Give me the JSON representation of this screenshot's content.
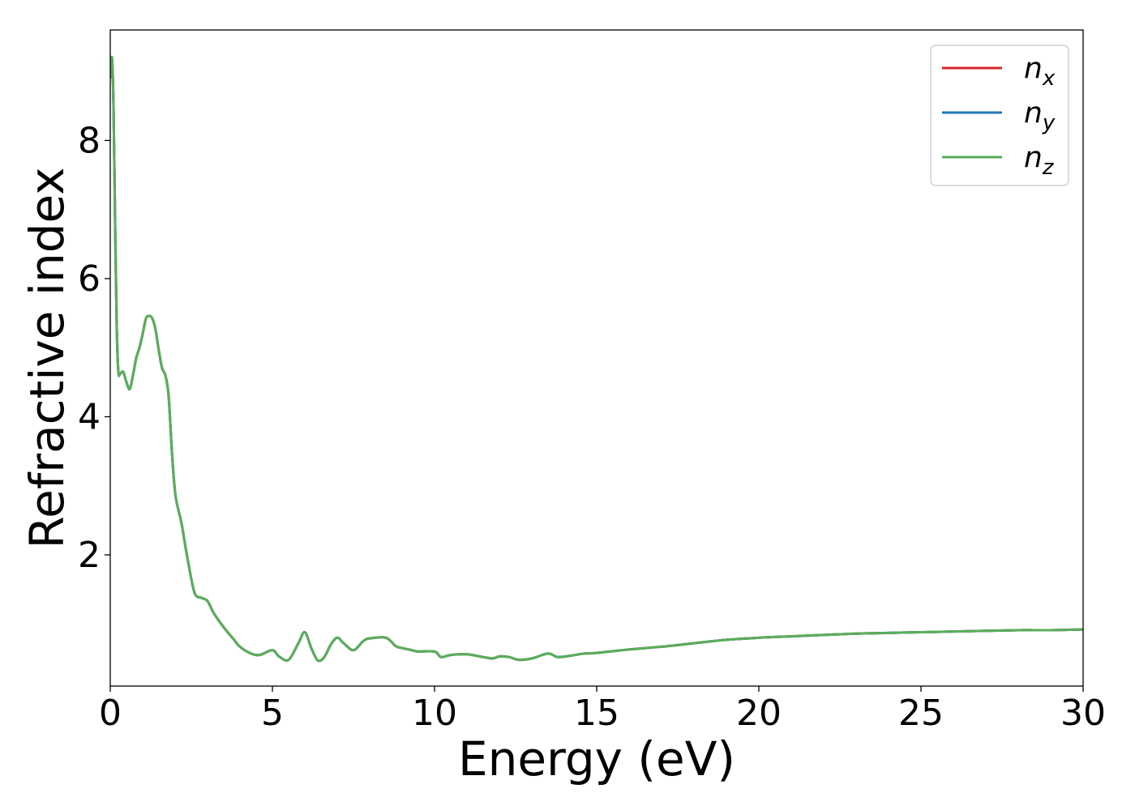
{
  "chart_data": {
    "type": "line",
    "title": "",
    "xlabel": "Energy (eV)",
    "ylabel": "Refractive index",
    "xlim": [
      0,
      30
    ],
    "ylim": [
      0.1,
      9.6
    ],
    "xticks": [
      0,
      5,
      10,
      15,
      20,
      25,
      30
    ],
    "yticks": [
      2,
      4,
      6,
      8
    ],
    "grid": false,
    "legend_position": "top-right",
    "x": [
      0.0,
      0.05,
      0.1,
      0.15,
      0.2,
      0.25,
      0.3,
      0.4,
      0.5,
      0.6,
      0.7,
      0.8,
      0.9,
      1.0,
      1.1,
      1.2,
      1.3,
      1.4,
      1.5,
      1.6,
      1.7,
      1.8,
      1.9,
      2.0,
      2.1,
      2.2,
      2.4,
      2.6,
      2.8,
      3.0,
      3.2,
      3.5,
      3.8,
      4.0,
      4.3,
      4.6,
      5.0,
      5.2,
      5.5,
      5.8,
      6.0,
      6.2,
      6.4,
      6.6,
      6.8,
      7.0,
      7.2,
      7.5,
      7.8,
      8.0,
      8.5,
      8.8,
      9.0,
      9.3,
      9.5,
      10.0,
      10.2,
      10.5,
      11.0,
      11.5,
      11.8,
      12.0,
      12.3,
      12.6,
      13.0,
      13.5,
      13.8,
      14.2,
      14.6,
      15.0,
      16.0,
      17.0,
      18.0,
      19.0,
      20.0,
      21.0,
      22.0,
      23.0,
      24.0,
      25.0,
      26.0,
      27.0,
      28.0,
      29.0,
      30.0
    ],
    "series": [
      {
        "name": "n_x",
        "color": "#d62728",
        "values": [
          8.9,
          9.2,
          8.5,
          6.8,
          5.3,
          4.65,
          4.62,
          4.65,
          4.5,
          4.4,
          4.6,
          4.85,
          5.0,
          5.2,
          5.42,
          5.46,
          5.42,
          5.25,
          4.95,
          4.7,
          4.6,
          4.3,
          3.5,
          2.9,
          2.65,
          2.45,
          1.9,
          1.45,
          1.38,
          1.33,
          1.15,
          0.95,
          0.78,
          0.67,
          0.58,
          0.55,
          0.62,
          0.53,
          0.48,
          0.72,
          0.88,
          0.65,
          0.47,
          0.52,
          0.7,
          0.8,
          0.72,
          0.62,
          0.75,
          0.79,
          0.8,
          0.68,
          0.65,
          0.62,
          0.6,
          0.6,
          0.52,
          0.55,
          0.56,
          0.52,
          0.5,
          0.53,
          0.52,
          0.48,
          0.5,
          0.57,
          0.52,
          0.54,
          0.57,
          0.58,
          0.63,
          0.67,
          0.72,
          0.77,
          0.8,
          0.82,
          0.84,
          0.86,
          0.87,
          0.88,
          0.89,
          0.9,
          0.91,
          0.91,
          0.92
        ]
      },
      {
        "name": "n_y",
        "color": "#1f77b4",
        "values": [
          8.9,
          9.2,
          8.5,
          6.8,
          5.3,
          4.65,
          4.62,
          4.65,
          4.5,
          4.4,
          4.6,
          4.85,
          5.0,
          5.2,
          5.42,
          5.46,
          5.42,
          5.25,
          4.95,
          4.7,
          4.6,
          4.3,
          3.5,
          2.9,
          2.65,
          2.45,
          1.9,
          1.45,
          1.38,
          1.33,
          1.15,
          0.95,
          0.78,
          0.67,
          0.58,
          0.55,
          0.62,
          0.53,
          0.48,
          0.72,
          0.88,
          0.65,
          0.47,
          0.52,
          0.7,
          0.8,
          0.72,
          0.62,
          0.75,
          0.79,
          0.8,
          0.68,
          0.65,
          0.62,
          0.6,
          0.6,
          0.52,
          0.55,
          0.56,
          0.52,
          0.5,
          0.53,
          0.52,
          0.48,
          0.5,
          0.57,
          0.52,
          0.54,
          0.57,
          0.58,
          0.63,
          0.67,
          0.72,
          0.77,
          0.8,
          0.82,
          0.84,
          0.86,
          0.87,
          0.88,
          0.89,
          0.9,
          0.91,
          0.91,
          0.92
        ]
      },
      {
        "name": "n_z",
        "color": "#5aae5a",
        "values": [
          8.9,
          9.2,
          8.5,
          6.8,
          5.3,
          4.65,
          4.62,
          4.65,
          4.5,
          4.4,
          4.6,
          4.85,
          5.0,
          5.2,
          5.42,
          5.46,
          5.42,
          5.25,
          4.95,
          4.7,
          4.6,
          4.3,
          3.5,
          2.9,
          2.65,
          2.45,
          1.9,
          1.45,
          1.38,
          1.33,
          1.15,
          0.95,
          0.78,
          0.67,
          0.58,
          0.55,
          0.62,
          0.53,
          0.48,
          0.72,
          0.88,
          0.65,
          0.47,
          0.52,
          0.7,
          0.8,
          0.72,
          0.62,
          0.75,
          0.79,
          0.8,
          0.68,
          0.65,
          0.62,
          0.6,
          0.6,
          0.52,
          0.55,
          0.56,
          0.52,
          0.5,
          0.53,
          0.52,
          0.48,
          0.5,
          0.57,
          0.52,
          0.54,
          0.57,
          0.58,
          0.63,
          0.67,
          0.72,
          0.77,
          0.8,
          0.82,
          0.84,
          0.86,
          0.87,
          0.88,
          0.89,
          0.9,
          0.91,
          0.91,
          0.92
        ]
      }
    ],
    "legend": [
      {
        "base": "n",
        "sub": "x",
        "color": "#d62728"
      },
      {
        "base": "n",
        "sub": "y",
        "color": "#1f77b4"
      },
      {
        "base": "n",
        "sub": "z",
        "color": "#5aae5a"
      }
    ]
  }
}
